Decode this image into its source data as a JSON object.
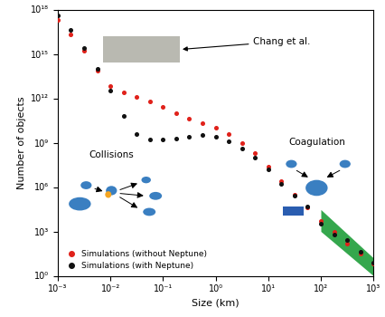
{
  "chart_data": {
    "type": "scatter",
    "x_label": "Size (km)",
    "y_label": "Number of objects",
    "log": true,
    "legend": "lower left",
    "xlim": [
      0.001,
      1000
    ],
    "ylim": [
      1,
      1e+18
    ],
    "xticks": [
      {
        "value": 0.001,
        "label": "10⁻³"
      },
      {
        "value": 0.01,
        "label": "10⁻²"
      },
      {
        "value": 0.1,
        "label": "10⁻¹"
      },
      {
        "value": 1,
        "label": "10⁰"
      },
      {
        "value": 10,
        "label": "10¹"
      },
      {
        "value": 100,
        "label": "10²"
      },
      {
        "value": 1000,
        "label": "10³"
      }
    ],
    "yticks": [
      {
        "value": 1,
        "label": "10⁰"
      },
      {
        "value": 1000,
        "label": "10³"
      },
      {
        "value": 1000000,
        "label": "10⁶"
      },
      {
        "value": 1000000000.0,
        "label": "10⁹"
      },
      {
        "value": 1000000000000.0,
        "label": "10¹²"
      },
      {
        "value": 1000000000000000.0,
        "label": "10¹⁵"
      },
      {
        "value": 1e+18,
        "label": "10¹⁸"
      }
    ],
    "x": [
      0.001,
      0.00178,
      0.00316,
      0.00562,
      0.01,
      0.0178,
      0.0316,
      0.0562,
      0.1,
      0.178,
      0.316,
      0.562,
      1,
      1.78,
      3.16,
      5.62,
      10,
      17.8,
      31.6,
      56.2,
      100,
      178,
      316,
      562,
      1000
    ],
    "series": [
      {
        "name": "Simulations (without Neptune)",
        "color": "#e0211a",
        "marker": "o",
        "line_style": "none",
        "values": [
          2e+17,
          2e+16,
          1600000000000000.0,
          79000000000000.0,
          6300000000000.0,
          2500000000000.0,
          1260000000000.0,
          630000000000.0,
          250000000000.0,
          100000000000.0,
          40000000000.0,
          20000000000.0,
          10000000000.0,
          4000000000.0,
          1000000000.0,
          200000000.0,
          25000000.0,
          2500000.0,
          316000.0,
          40000.0,
          5000,
          1000,
          158,
          32,
          6.3
        ]
      },
      {
        "name": "Simulations (with Neptune)",
        "color": "#111111",
        "marker": "o",
        "line_style": "none",
        "values": [
          4e+17,
          4e+16,
          2500000000000000.0,
          100000000000000.0,
          3160000000000.0,
          63000000000.0,
          4000000000.0,
          1580000000.0,
          1580000000.0,
          2000000000.0,
          2500000000.0,
          3160000000.0,
          2500000000.0,
          1260000000.0,
          400000000.0,
          100000000.0,
          15800000.0,
          1580000.0,
          250000.0,
          50000.0,
          3160,
          631,
          251,
          40,
          7.9
        ]
      }
    ],
    "chang_box": {
      "label": "Chang et al.",
      "x": [
        0.0073,
        0.21
      ],
      "y": [
        250000000000000.0,
        1.6e+16
      ],
      "color": "#a8a89e"
    },
    "blue_box": {
      "x": [
        19,
        47
      ],
      "y": [
        12600,
        50000
      ],
      "color": "#2a5db0"
    },
    "green_band": {
      "x": [
        100,
        1000
      ],
      "lower": [
        1000,
        1
      ],
      "upper": [
        30000,
        16
      ],
      "color": "#1f9e3a"
    },
    "annotations": [
      "Collisions",
      "Coagulation"
    ]
  }
}
